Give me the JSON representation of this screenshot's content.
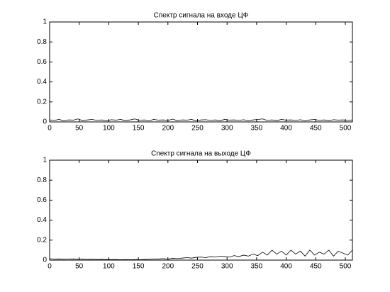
{
  "chart_data": [
    {
      "type": "line",
      "title": "Спектр сигнала на входе ЦФ",
      "x": [
        0,
        8,
        16,
        24,
        32,
        40,
        48,
        56,
        64,
        72,
        80,
        88,
        96,
        104,
        112,
        120,
        128,
        136,
        144,
        152,
        160,
        168,
        176,
        184,
        192,
        200,
        208,
        216,
        224,
        232,
        240,
        248,
        256,
        264,
        272,
        280,
        288,
        296,
        304,
        312,
        320,
        328,
        336,
        344,
        352,
        360,
        368,
        376,
        384,
        392,
        400,
        408,
        416,
        424,
        432,
        440,
        448,
        456,
        464,
        472,
        480,
        488,
        496,
        504,
        512
      ],
      "series": [
        {
          "color": "#000000",
          "values": [
            0.02,
            0.015,
            0.025,
            0.01,
            0.02,
            0.018,
            0.03,
            0.012,
            0.02,
            0.025,
            0.015,
            0.02,
            0.01,
            0.022,
            0.018,
            0.025,
            0.012,
            0.02,
            0.03,
            0.015,
            0.02,
            0.01,
            0.025,
            0.018,
            0.02,
            0.015,
            0.028,
            0.012,
            0.02,
            0.018,
            0.025,
            0.01,
            0.02,
            0.022,
            0.015,
            0.02,
            0.012,
            0.025,
            0.018,
            0.02,
            0.015,
            0.022,
            0.01,
            0.02,
            0.025,
            0.03,
            0.015,
            0.02,
            0.012,
            0.025,
            0.018,
            0.02,
            0.015,
            0.022,
            0.01,
            0.02,
            0.025,
            0.015,
            0.02,
            0.012,
            0.022,
            0.018,
            0.02,
            0.015,
            0.02
          ]
        }
      ],
      "xlim": [
        0,
        512
      ],
      "xticks": [
        0,
        50,
        100,
        150,
        200,
        250,
        300,
        350,
        400,
        450,
        500
      ],
      "ylim": [
        0,
        1
      ],
      "yticks": [
        0,
        0.2,
        0.4,
        0.6,
        0.8,
        1
      ]
    },
    {
      "type": "line",
      "title": "Спектр сигнала на выходе ЦФ",
      "x": [
        0,
        8,
        16,
        24,
        32,
        40,
        48,
        56,
        64,
        72,
        80,
        88,
        96,
        104,
        112,
        120,
        128,
        136,
        144,
        152,
        160,
        168,
        176,
        184,
        192,
        200,
        208,
        216,
        224,
        232,
        240,
        248,
        256,
        264,
        272,
        280,
        288,
        296,
        304,
        312,
        320,
        328,
        336,
        344,
        352,
        360,
        368,
        376,
        384,
        392,
        400,
        408,
        416,
        424,
        432,
        440,
        448,
        456,
        464,
        472,
        480,
        488,
        496,
        504,
        512
      ],
      "series": [
        {
          "color": "#000000",
          "values": [
            0.015,
            0.01,
            0.012,
            0.008,
            0.01,
            0.012,
            0.008,
            0.01,
            0.007,
            0.009,
            0.006,
            0.008,
            0.006,
            0.005,
            0.006,
            0.004,
            0.005,
            0.004,
            0.005,
            0.004,
            0.006,
            0.008,
            0.01,
            0.012,
            0.015,
            0.01,
            0.018,
            0.015,
            0.02,
            0.025,
            0.02,
            0.028,
            0.03,
            0.025,
            0.035,
            0.03,
            0.04,
            0.035,
            0.03,
            0.045,
            0.035,
            0.05,
            0.04,
            0.06,
            0.045,
            0.08,
            0.05,
            0.1,
            0.06,
            0.09,
            0.05,
            0.1,
            0.06,
            0.09,
            0.04,
            0.1,
            0.05,
            0.08,
            0.06,
            0.1,
            0.04,
            0.09,
            0.07,
            0.05,
            0.1
          ]
        }
      ],
      "xlim": [
        0,
        512
      ],
      "xticks": [
        0,
        50,
        100,
        150,
        200,
        250,
        300,
        350,
        400,
        450,
        500
      ],
      "ylim": [
        0,
        1
      ],
      "yticks": [
        0,
        0.2,
        0.4,
        0.6,
        0.8,
        1
      ]
    }
  ]
}
